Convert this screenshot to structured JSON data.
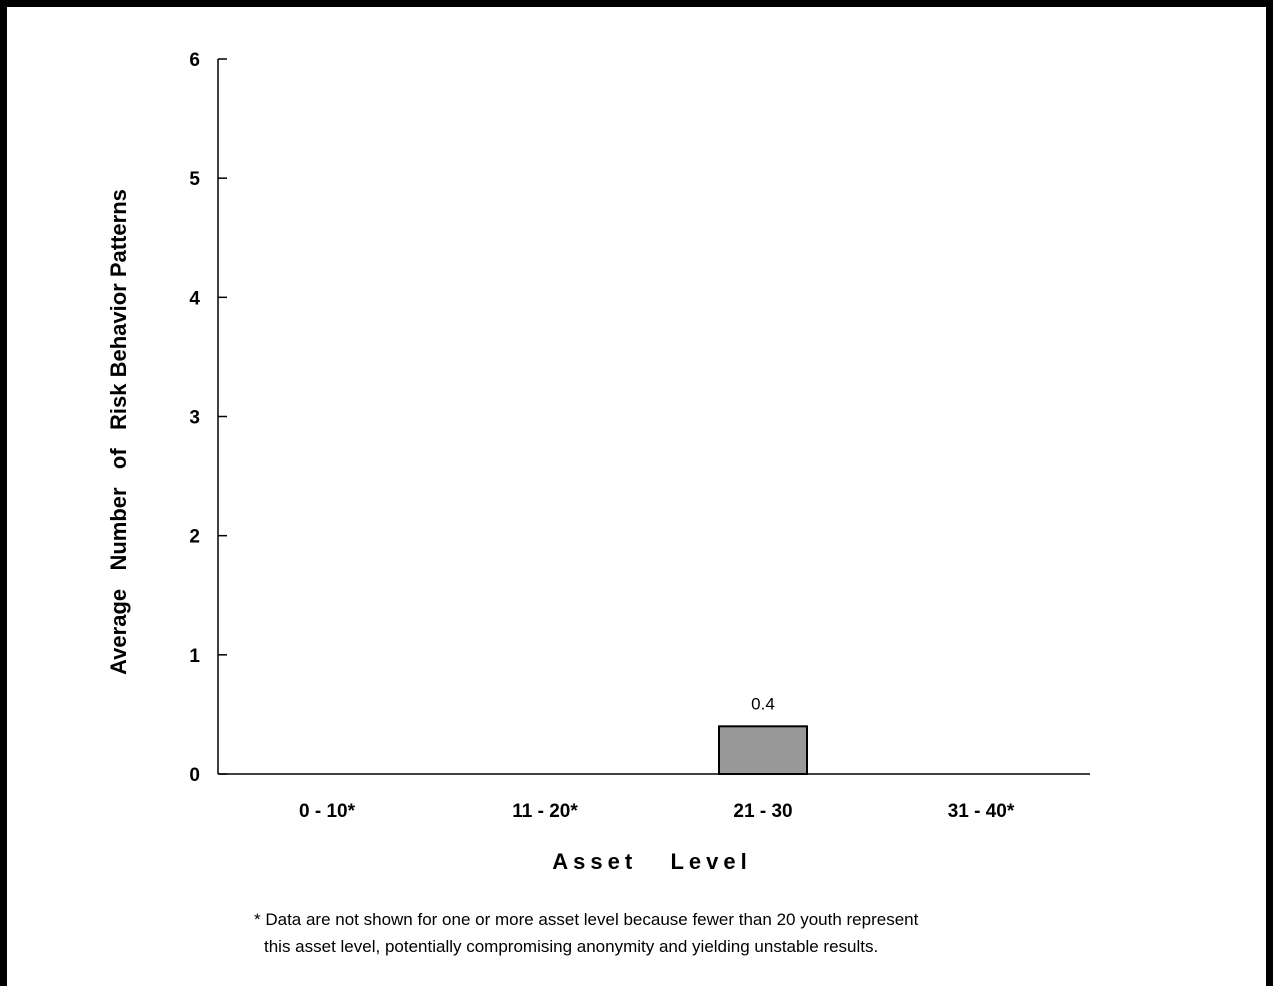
{
  "chart_data": {
    "type": "bar",
    "categories": [
      "0 - 10*",
      "11 - 20*",
      "21 - 30",
      "31 - 40*"
    ],
    "values": [
      null,
      null,
      0.4,
      null
    ],
    "data_labels": [
      "",
      "",
      "0.4",
      ""
    ],
    "xlabel": "Asset   Level",
    "ylabel": "Average   Number   of   Risk Behavior Patterns",
    "ylim": [
      0,
      6
    ],
    "yticks": [
      "0",
      "1",
      "2",
      "3",
      "4",
      "5",
      "6"
    ],
    "grid": false,
    "bar_color": "#999999"
  },
  "footnote": {
    "line1": "* Data are not shown for one or more asset level because fewer than 20 youth represent",
    "line2": "this asset level, potentially compromising anonymity and yielding unstable results."
  }
}
